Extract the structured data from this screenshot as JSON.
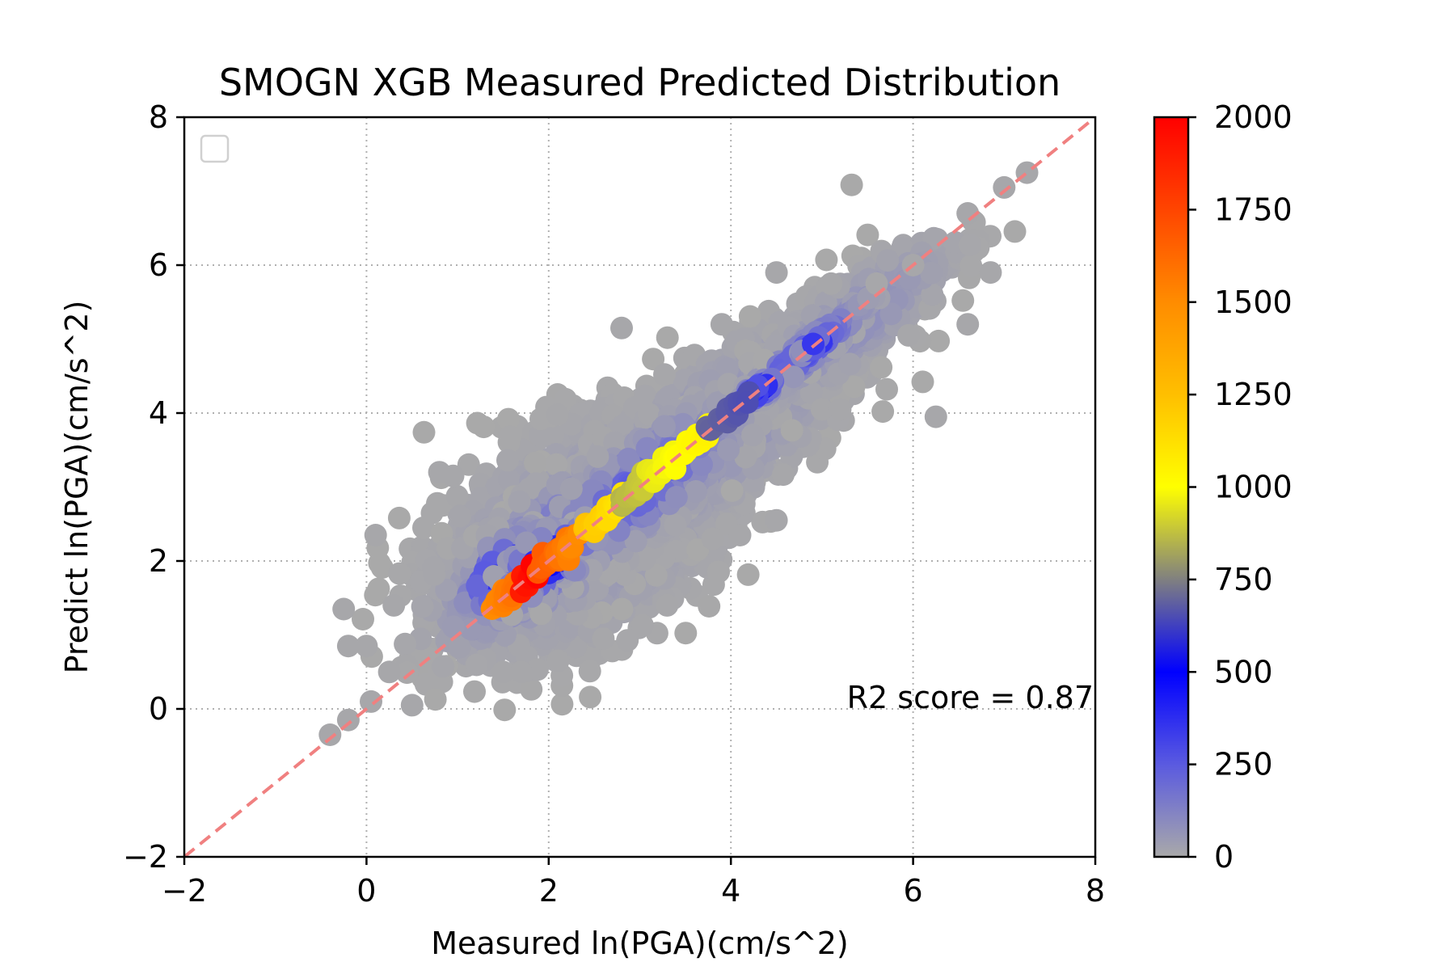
{
  "chart_data": {
    "type": "scatter",
    "title": "SMOGN XGB Measured Predicted Distribution",
    "xlabel": "Measured ln(PGA)(cm/s^2)",
    "ylabel": "Predict ln(PGA)(cm/s^2)",
    "xlim": [
      -2,
      8
    ],
    "ylim": [
      -2,
      8
    ],
    "xticks": [
      -2,
      0,
      2,
      4,
      6,
      8
    ],
    "yticks": [
      -2,
      0,
      2,
      4,
      6,
      8
    ],
    "x_tick_labels": [
      "−2",
      "0",
      "2",
      "4",
      "6",
      "8"
    ],
    "y_tick_labels": [
      "−2",
      "0",
      "2",
      "4",
      "6",
      "8"
    ],
    "grid": true,
    "legend": "top-left (empty)",
    "annotation": "R2 score = 0.87",
    "reference_line": {
      "style": "dashed",
      "color": "#f08080",
      "from": [
        -2,
        -2
      ],
      "to": [
        8,
        8
      ]
    },
    "colorbar": {
      "min": 0,
      "max": 2000,
      "ticks": [
        0,
        250,
        500,
        750,
        1000,
        1250,
        1500,
        1750,
        2000
      ],
      "tick_labels": [
        "0",
        "250",
        "500",
        "750",
        "1000",
        "1250",
        "1500",
        "1750",
        "2000"
      ],
      "colors": [
        {
          "value": 0,
          "color": "#a9a9a9"
        },
        {
          "value": 250,
          "color": "#5a5ae0"
        },
        {
          "value": 500,
          "color": "#0000ff"
        },
        {
          "value": 750,
          "color": "#808080"
        },
        {
          "value": 1000,
          "color": "#ffff00"
        },
        {
          "value": 1250,
          "color": "#ffbf00"
        },
        {
          "value": 1500,
          "color": "#ff8c00"
        },
        {
          "value": 1750,
          "color": "#ff4500"
        },
        {
          "value": 2000,
          "color": "#ff0000"
        }
      ]
    },
    "points_outliers": [
      [
        -0.4,
        -0.35
      ],
      [
        -0.2,
        -0.15
      ],
      [
        0.05,
        0.1
      ],
      [
        0.5,
        0.05
      ],
      [
        0.1,
        2.35
      ],
      [
        -0.2,
        0.85
      ],
      [
        0.0,
        0.85
      ],
      [
        -0.25,
        1.35
      ],
      [
        0.25,
        0.5
      ],
      [
        1.5,
        0.5
      ],
      [
        1.7,
        0.5
      ],
      [
        2.6,
        0.95
      ],
      [
        2.8,
        5.15
      ],
      [
        3.9,
        5.2
      ],
      [
        4.1,
        2.35
      ],
      [
        3.8,
        2.3
      ],
      [
        4.5,
        2.55
      ],
      [
        6.25,
        3.95
      ],
      [
        6.85,
        5.9
      ],
      [
        6.6,
        5.2
      ],
      [
        5.0,
        4.05
      ],
      [
        5.2,
        4.05
      ],
      [
        5.95,
        5.05
      ],
      [
        6.0,
        6.0
      ],
      [
        7.0,
        7.05
      ],
      [
        7.25,
        7.25
      ],
      [
        6.6,
        6.7
      ],
      [
        5.6,
        5.75
      ],
      [
        5.1,
        5.75
      ],
      [
        4.5,
        5.9
      ],
      [
        0.8,
        3.2
      ],
      [
        0.95,
        3.15
      ],
      [
        3.3,
        1.4
      ],
      [
        0.3,
        1.4
      ]
    ],
    "point_clusters": [
      {
        "cx": 2.4,
        "cy": 2.4,
        "sx": 0.75,
        "sy": 0.75,
        "rho": 0.45,
        "n": 2400,
        "density_peak": 100
      },
      {
        "cx": 3.7,
        "cy": 3.6,
        "sx": 0.85,
        "sy": 0.85,
        "rho": 0.8,
        "n": 1400,
        "density_peak": 100
      },
      {
        "cx": 5.3,
        "cy": 5.2,
        "sx": 0.55,
        "sy": 0.55,
        "rho": 0.85,
        "n": 600,
        "density_peak": 100
      },
      {
        "cx": 2.1,
        "cy": 2.2,
        "sx": 0.6,
        "sy": 0.6,
        "rho": 0.75,
        "n": 700,
        "density_peak": 260
      },
      {
        "cx": 3.0,
        "cy": 3.0,
        "sx": 0.55,
        "sy": 0.55,
        "rho": 0.8,
        "n": 500,
        "density_peak": 260
      },
      {
        "cx": 4.8,
        "cy": 4.8,
        "sx": 0.35,
        "sy": 0.35,
        "rho": 0.95,
        "n": 200,
        "density_peak": 300
      },
      {
        "cx": 1.6,
        "cy": 1.85,
        "sx": 0.28,
        "sy": 0.28,
        "rho": 0.5,
        "n": 140,
        "density_peak": 500
      },
      {
        "cx": 2.0,
        "cy": 2.0,
        "sx": 0.25,
        "sy": 0.25,
        "rho": 0.6,
        "n": 90,
        "density_peak": 500
      },
      {
        "cx": 4.3,
        "cy": 4.3,
        "sx": 0.12,
        "sy": 0.1,
        "rho": 0.8,
        "n": 40,
        "density_peak": 500
      },
      {
        "cx": 4.95,
        "cy": 4.95,
        "sx": 0.1,
        "sy": 0.1,
        "rho": 0.9,
        "n": 15,
        "density_peak": 450
      }
    ],
    "point_ridge": [
      {
        "x0": 1.4,
        "x1": 1.7,
        "n": 30,
        "density_start": 1500,
        "density_end": 1600
      },
      {
        "x0": 1.7,
        "x1": 1.9,
        "n": 20,
        "density_start": 1900,
        "density_end": 2000
      },
      {
        "x0": 1.9,
        "x1": 2.3,
        "n": 30,
        "density_start": 1700,
        "density_end": 1500
      },
      {
        "x0": 2.4,
        "x1": 2.8,
        "n": 30,
        "density_start": 1250,
        "density_end": 1100
      },
      {
        "x0": 2.8,
        "x1": 3.1,
        "n": 20,
        "density_start": 850,
        "density_end": 900
      },
      {
        "x0": 3.1,
        "x1": 3.75,
        "n": 40,
        "density_start": 950,
        "density_end": 1050
      },
      {
        "x0": 3.75,
        "x1": 4.2,
        "n": 20,
        "density_start": 700,
        "density_end": 650
      }
    ]
  }
}
